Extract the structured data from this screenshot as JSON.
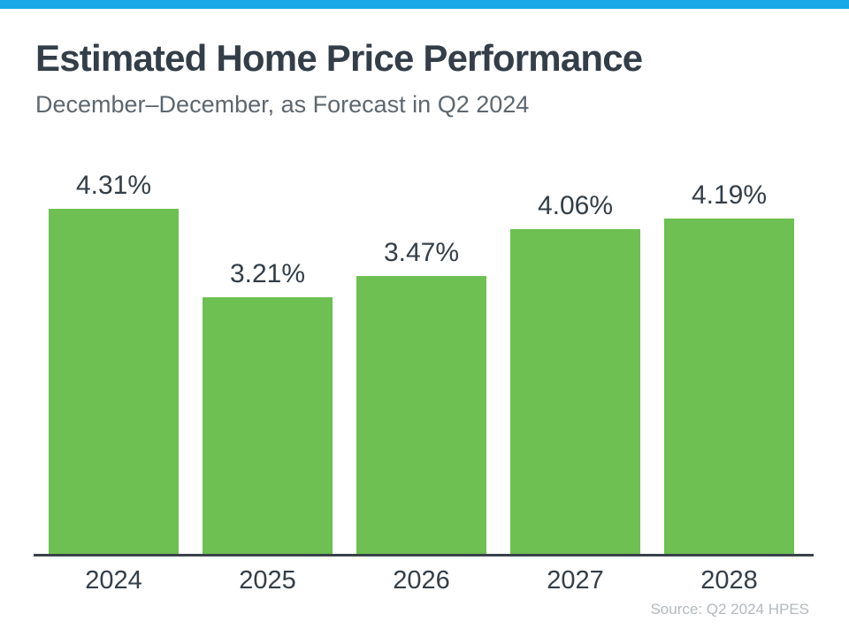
{
  "page": {
    "background": "#FFFFFF",
    "top_bar_color": "#19A9E9"
  },
  "header": {
    "title": "Estimated Home Price Performance",
    "subtitle": "December–December, as Forecast in Q2 2024"
  },
  "footer": {
    "source": "Source: Q2 2024 HPES"
  },
  "chart_data": {
    "type": "bar",
    "title": "Estimated Home Price Performance",
    "subtitle": "December–December, as Forecast in Q2 2024",
    "categories": [
      "2024",
      "2025",
      "2026",
      "2027",
      "2028"
    ],
    "values": [
      4.31,
      3.21,
      3.47,
      4.06,
      4.19
    ],
    "value_labels": [
      "4.31%",
      "3.21%",
      "3.47%",
      "4.06%",
      "4.19%"
    ],
    "ylabel": "",
    "xlabel": "",
    "ylim": [
      0,
      4.31
    ],
    "grid": false,
    "legend": false,
    "bar_color": "#6DC051",
    "value_label_color": "#333E48",
    "axis_label_color": "#333E48",
    "axis_line_color": "#39424A",
    "source": "Source: Q2 2024 HPES"
  }
}
